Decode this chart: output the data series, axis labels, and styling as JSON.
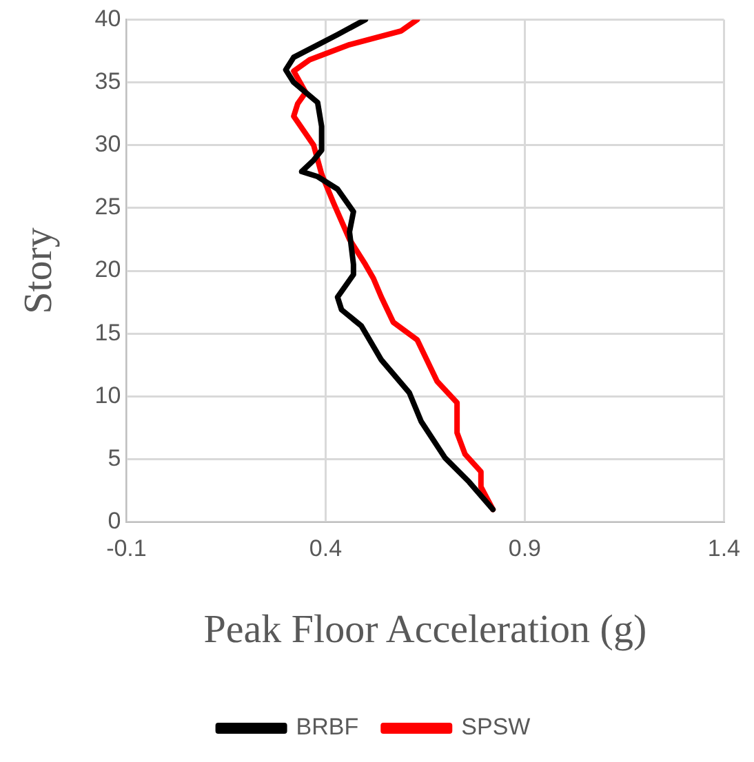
{
  "chart_data": {
    "type": "line",
    "xlabel": "Peak Floor Acceleration (g)",
    "ylabel": "Story",
    "xlim": [
      -0.1,
      1.4
    ],
    "xticks": [
      -0.1,
      0.4,
      0.9,
      1.4
    ],
    "ylim": [
      0,
      40
    ],
    "yticks": [
      0,
      5,
      10,
      15,
      20,
      25,
      30,
      35,
      40
    ],
    "grid": true,
    "legend": "bottom",
    "marker": "none",
    "line_style": "solid",
    "series": [
      {
        "name": "BRBF",
        "color": "#000000",
        "x": [
          0.82,
          0.76,
          0.7,
          0.64,
          0.61,
          0.54,
          0.49,
          0.44,
          0.43,
          0.47,
          0.47,
          0.46,
          0.47,
          0.43,
          0.38,
          0.34,
          0.37,
          0.39,
          0.39,
          0.38,
          0.32,
          0.3,
          0.32,
          0.43,
          0.5
        ],
        "values": [
          1,
          3.2,
          5.1,
          8,
          10.3,
          12.9,
          15.6,
          16.9,
          17.9,
          19.7,
          20.5,
          23.1,
          24.7,
          26.5,
          27.5,
          27.9,
          28.8,
          29.6,
          31.5,
          33.4,
          35,
          36,
          37,
          38.8,
          40
        ]
      },
      {
        "name": "SPSW",
        "color": "#ff0000",
        "x": [
          0.82,
          0.79,
          0.79,
          0.75,
          0.73,
          0.73,
          0.68,
          0.63,
          0.57,
          0.54,
          0.52,
          0.5,
          0.46,
          0.42,
          0.39,
          0.37,
          0.32,
          0.33,
          0.35,
          0.32,
          0.36,
          0.46,
          0.59,
          0.63
        ],
        "values": [
          1,
          2.8,
          4,
          5.4,
          7.1,
          9.5,
          11.2,
          14.5,
          15.9,
          17.9,
          19.4,
          20.5,
          22.5,
          25.4,
          27.7,
          30,
          32.3,
          33.3,
          34.2,
          35.9,
          36.8,
          38,
          39.1,
          40
        ]
      }
    ]
  }
}
